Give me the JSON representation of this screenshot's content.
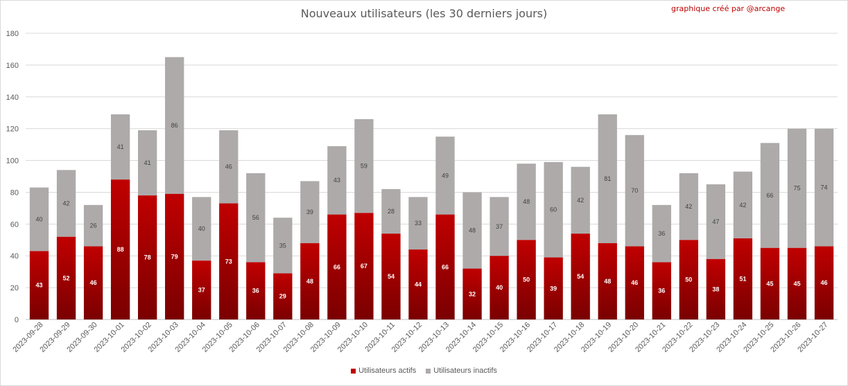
{
  "title": "Nouveaux utilisateurs  (les 30 derniers  jours)",
  "credit": "graphique créé par @arcange",
  "colors": {
    "active": "#c00000",
    "active_dark": "#7a0000",
    "inactive": "#aeaaaa",
    "grid": "#d9d9d9",
    "axis_text": "#595959"
  },
  "legend": [
    {
      "label": "Utilisateurs actifs",
      "color": "#c00000"
    },
    {
      "label": "Utilisateurs inactifs",
      "color": "#aeaaaa"
    }
  ],
  "chart_data": {
    "type": "bar",
    "stacked": true,
    "title": "Nouveaux utilisateurs  (les 30 derniers  jours)",
    "ylim": [
      0,
      180
    ],
    "yticks": [
      0,
      20,
      40,
      60,
      80,
      100,
      120,
      140,
      160,
      180
    ],
    "grid": true,
    "legend_position": "bottom",
    "categories": [
      "2023-09-28",
      "2023-09-29",
      "2023-09-30",
      "2023-10-01",
      "2023-10-02",
      "2023-10-03",
      "2023-10-04",
      "2023-10-05",
      "2023-10-06",
      "2023-10-07",
      "2023-10-08",
      "2023-10-09",
      "2023-10-10",
      "2023-10-11",
      "2023-10-12",
      "2023-10-13",
      "2023-10-14",
      "2023-10-15",
      "2023-10-16",
      "2023-10-17",
      "2023-10-18",
      "2023-10-19",
      "2023-10-20",
      "2023-10-21",
      "2023-10-22",
      "2023-10-23",
      "2023-10-24",
      "2023-10-25",
      "2023-10-26",
      "2023-10-27"
    ],
    "series": [
      {
        "name": "Utilisateurs actifs",
        "values": [
          43,
          52,
          46,
          88,
          78,
          79,
          37,
          73,
          36,
          29,
          48,
          66,
          67,
          54,
          44,
          66,
          32,
          40,
          50,
          39,
          54,
          48,
          46,
          36,
          50,
          38,
          51,
          45,
          45,
          46
        ]
      },
      {
        "name": "Utilisateurs inactifs",
        "values": [
          40,
          42,
          26,
          41,
          41,
          86,
          40,
          46,
          56,
          35,
          39,
          43,
          59,
          28,
          33,
          49,
          48,
          37,
          48,
          60,
          42,
          81,
          70,
          36,
          42,
          47,
          42,
          66,
          75,
          74
        ]
      }
    ]
  }
}
